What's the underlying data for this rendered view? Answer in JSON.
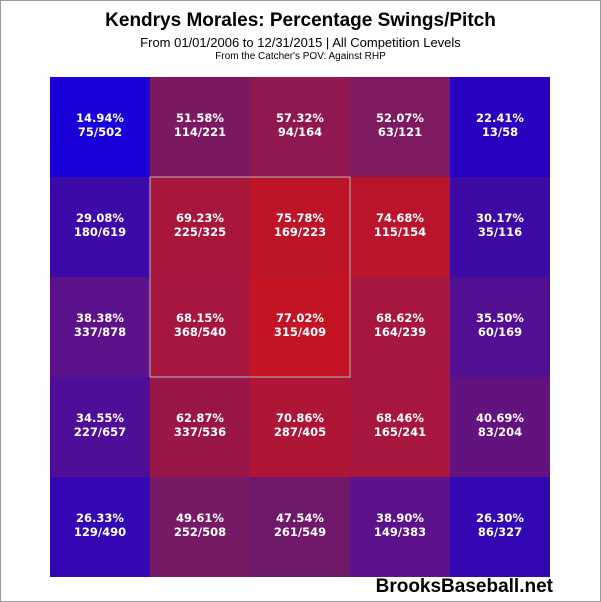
{
  "header": {
    "title": "Kendrys Morales: Percentage Swings/Pitch",
    "subtitle": "From 01/01/2006 to 12/31/2015 | All Competition Levels",
    "subsubtitle": "From the Catcher's POV:   Against RHP"
  },
  "footer": {
    "brand": "BrooksBaseball.net"
  },
  "chart_data": {
    "type": "heatmap",
    "title": "Kendrys Morales: Percentage Swings/Pitch",
    "rows": 5,
    "cols": 5,
    "strike_zone": {
      "rows": [
        1,
        3
      ],
      "cols": [
        1,
        3
      ]
    },
    "cells": [
      [
        {
          "pct": "14.94%",
          "count": "75/502",
          "color": "#1a00d8"
        },
        {
          "pct": "51.58%",
          "count": "114/221",
          "color": "#7b1a60"
        },
        {
          "pct": "57.32%",
          "count": "94/164",
          "color": "#8f1850"
        },
        {
          "pct": "52.07%",
          "count": "63/121",
          "color": "#7d1a60"
        },
        {
          "pct": "22.41%",
          "count": "13/58",
          "color": "#2a00c0"
        }
      ],
      [
        {
          "pct": "29.08%",
          "count": "180/619",
          "color": "#3c0aa8"
        },
        {
          "pct": "69.23%",
          "count": "225/325",
          "color": "#a8163c"
        },
        {
          "pct": "75.78%",
          "count": "169/223",
          "color": "#bd1428"
        },
        {
          "pct": "74.68%",
          "count": "115/154",
          "color": "#b9142c"
        },
        {
          "pct": "30.17%",
          "count": "35/116",
          "color": "#3e0aa6"
        }
      ],
      [
        {
          "pct": "38.38%",
          "count": "337/878",
          "color": "#5c128a"
        },
        {
          "pct": "68.15%",
          "count": "368/540",
          "color": "#a6163e"
        },
        {
          "pct": "77.02%",
          "count": "315/409",
          "color": "#c31424"
        },
        {
          "pct": "68.62%",
          "count": "164/239",
          "color": "#a7163d"
        },
        {
          "pct": "35.50%",
          "count": "60/169",
          "color": "#520f94"
        }
      ],
      [
        {
          "pct": "34.55%",
          "count": "227/657",
          "color": "#4e0e98"
        },
        {
          "pct": "62.87%",
          "count": "337/536",
          "color": "#9a1648"
        },
        {
          "pct": "70.86%",
          "count": "287/405",
          "color": "#ae1536"
        },
        {
          "pct": "68.46%",
          "count": "165/241",
          "color": "#a7163d"
        },
        {
          "pct": "40.69%",
          "count": "83/204",
          "color": "#621380"
        }
      ],
      [
        {
          "pct": "26.33%",
          "count": "129/490",
          "color": "#3308b4"
        },
        {
          "pct": "49.61%",
          "count": "252/508",
          "color": "#761a66"
        },
        {
          "pct": "47.54%",
          "count": "261/549",
          "color": "#70186a"
        },
        {
          "pct": "38.90%",
          "count": "149/383",
          "color": "#5c128a"
        },
        {
          "pct": "26.30%",
          "count": "86/327",
          "color": "#3308b4"
        }
      ]
    ]
  }
}
